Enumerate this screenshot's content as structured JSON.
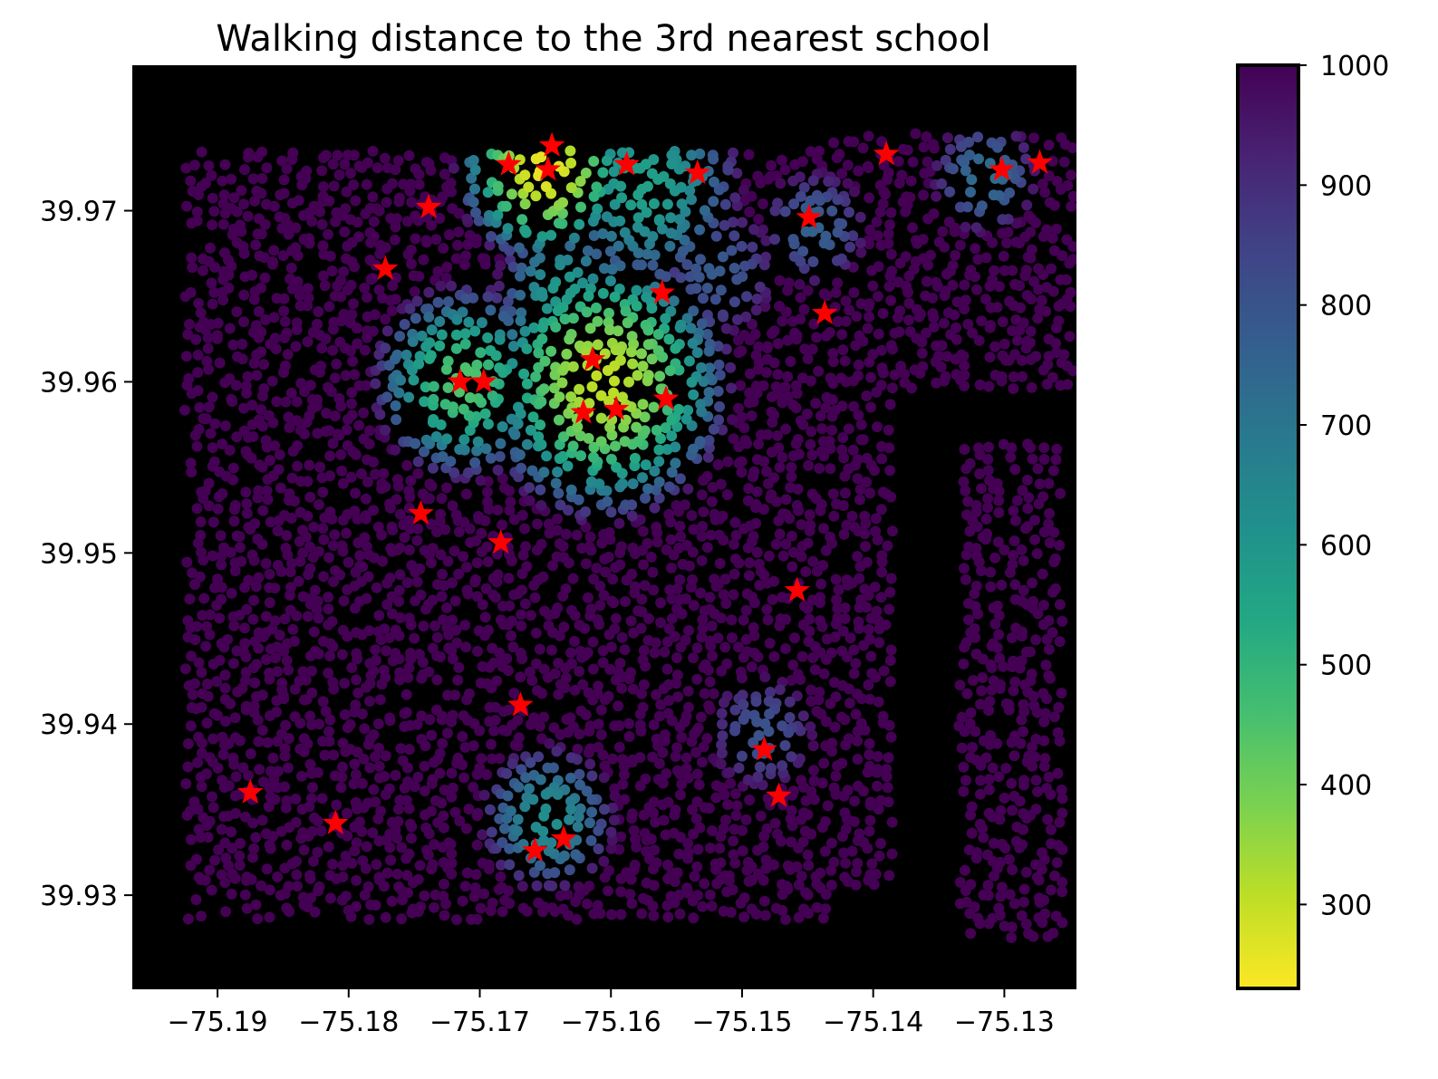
{
  "chart_data": {
    "type": "scatter",
    "title": "Walking distance to the 3rd nearest school",
    "xlabel": "",
    "ylabel": "",
    "xlim": [
      -75.1965,
      -75.1245
    ],
    "ylim": [
      39.9245,
      39.9785
    ],
    "x_ticks": [
      -75.19,
      -75.18,
      -75.17,
      -75.16,
      -75.15,
      -75.14,
      -75.13
    ],
    "x_tick_labels": [
      "−75.19",
      "−75.18",
      "−75.17",
      "−75.16",
      "−75.15",
      "−75.14",
      "−75.13"
    ],
    "y_ticks": [
      39.93,
      39.94,
      39.95,
      39.96,
      39.97
    ],
    "y_tick_labels": [
      "39.93",
      "39.94",
      "39.95",
      "39.96",
      "39.97"
    ],
    "background_color": "#000000",
    "grid": false,
    "colormap": "viridis_r",
    "colorbar": {
      "label": "",
      "range": [
        230,
        1000
      ],
      "ticks": [
        300,
        400,
        500,
        600,
        700,
        800,
        900,
        1000
      ],
      "tick_labels": [
        "300",
        "400",
        "500",
        "600",
        "700",
        "800",
        "900",
        "1000"
      ]
    },
    "schools_marker": "star",
    "schools_color": "#ff0000",
    "schools": [
      {
        "x": -75.1875,
        "y": 39.936
      },
      {
        "x": -75.181,
        "y": 39.9342
      },
      {
        "x": -75.1772,
        "y": 39.9666
      },
      {
        "x": -75.1739,
        "y": 39.9702
      },
      {
        "x": -75.1745,
        "y": 39.9523
      },
      {
        "x": -75.1715,
        "y": 39.96
      },
      {
        "x": -75.1697,
        "y": 39.96
      },
      {
        "x": -75.1684,
        "y": 39.9506
      },
      {
        "x": -75.1678,
        "y": 39.9727
      },
      {
        "x": -75.1669,
        "y": 39.9411
      },
      {
        "x": -75.1658,
        "y": 39.9326
      },
      {
        "x": -75.1648,
        "y": 39.9724
      },
      {
        "x": -75.1645,
        "y": 39.9738
      },
      {
        "x": -75.1636,
        "y": 39.9333
      },
      {
        "x": -75.1621,
        "y": 39.9582
      },
      {
        "x": -75.1614,
        "y": 39.9613
      },
      {
        "x": -75.1596,
        "y": 39.9584
      },
      {
        "x": -75.1588,
        "y": 39.9727
      },
      {
        "x": -75.1561,
        "y": 39.9652
      },
      {
        "x": -75.1558,
        "y": 39.959
      },
      {
        "x": -75.1534,
        "y": 39.9722
      },
      {
        "x": -75.1483,
        "y": 39.9385
      },
      {
        "x": -75.1472,
        "y": 39.9358
      },
      {
        "x": -75.1458,
        "y": 39.9478
      },
      {
        "x": -75.1449,
        "y": 39.9696
      },
      {
        "x": -75.1437,
        "y": 39.964
      },
      {
        "x": -75.139,
        "y": 39.9733
      },
      {
        "x": -75.1302,
        "y": 39.9724
      },
      {
        "x": -75.1273,
        "y": 39.9728
      }
    ],
    "hotspots": [
      {
        "x": -75.165,
        "y": 39.9725,
        "radius": 0.006,
        "min_value": 250
      },
      {
        "x": -75.1605,
        "y": 39.96,
        "radius": 0.0085,
        "min_value": 300
      },
      {
        "x": -75.1713,
        "y": 39.96,
        "radius": 0.006,
        "min_value": 440
      },
      {
        "x": -75.1575,
        "y": 39.9715,
        "radius": 0.0065,
        "min_value": 560
      },
      {
        "x": -75.1636,
        "y": 39.9652,
        "radius": 0.0045,
        "min_value": 580
      },
      {
        "x": -75.1648,
        "y": 39.9345,
        "radius": 0.0045,
        "min_value": 620
      },
      {
        "x": -75.1485,
        "y": 39.9395,
        "radius": 0.0035,
        "min_value": 800
      },
      {
        "x": -75.1445,
        "y": 39.969,
        "radius": 0.0035,
        "min_value": 760
      },
      {
        "x": -75.1315,
        "y": 39.972,
        "radius": 0.0035,
        "min_value": 720
      },
      {
        "x": -75.152,
        "y": 39.9665,
        "radius": 0.004,
        "min_value": 780
      }
    ],
    "network_regions": [
      {
        "x_min": -75.1925,
        "x_max": -75.1435,
        "y_min": 39.9285,
        "y_max": 39.9735
      },
      {
        "x_min": -75.1435,
        "x_max": -75.1235,
        "y_min": 39.9595,
        "y_max": 39.9745
      },
      {
        "x_min": -75.1435,
        "x_max": -75.1385,
        "y_min": 39.9305,
        "y_max": 39.9595
      },
      {
        "x_min": -75.1335,
        "x_max": -75.1255,
        "y_min": 39.9275,
        "y_max": 39.9565
      }
    ]
  }
}
